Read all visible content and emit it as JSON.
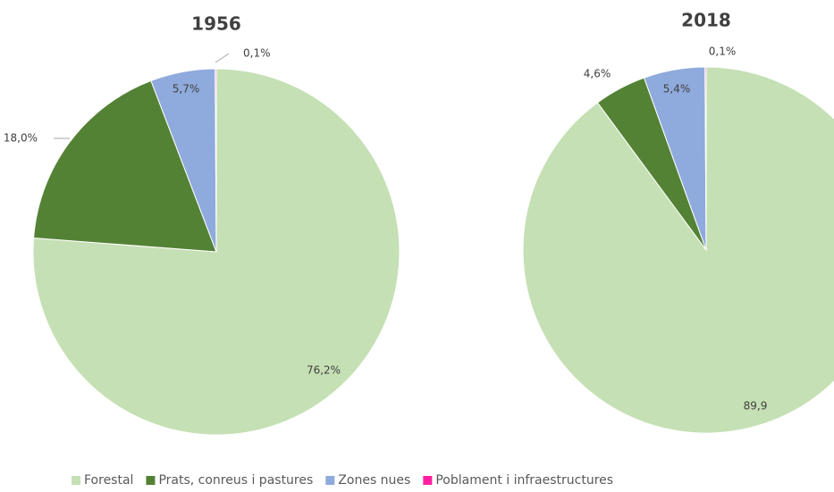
{
  "chart_data": [
    {
      "type": "pie",
      "title": "1956",
      "categories": [
        "Forestal",
        "Prats, conreus i pastures",
        "Zones nues",
        "Poblament i infraestructures"
      ],
      "values": [
        76.2,
        18.0,
        5.7,
        0.1
      ],
      "value_labels": [
        "76,2%",
        "18,0%",
        "5,7%",
        "0,1%"
      ],
      "colors": [
        "#c5e0b4",
        "#548235",
        "#8faadc",
        "#ff1fa0"
      ]
    },
    {
      "type": "pie",
      "title": "2018",
      "categories": [
        "Forestal",
        "Prats, conreus i pastures",
        "Zones nues",
        "Poblament i infraestructures"
      ],
      "values": [
        89.9,
        4.6,
        5.4,
        0.1
      ],
      "value_labels": [
        "89,9",
        "4,6%",
        "5,4%",
        "0,1%"
      ],
      "colors": [
        "#c5e0b4",
        "#548235",
        "#8faadc",
        "#ff1fa0"
      ]
    }
  ]
}
